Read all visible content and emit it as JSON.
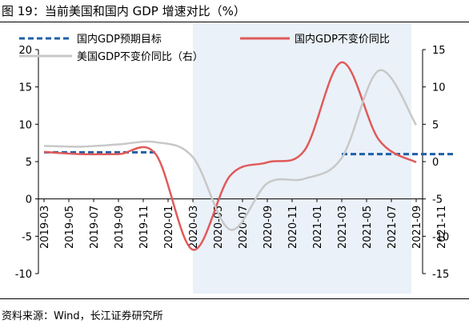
{
  "figure": {
    "title": "图 19：当前美国和国内 GDP 增速对比（%）",
    "source": "资料来源：Wind，长江证券研究所"
  },
  "chart_data": {
    "type": "line",
    "title": "",
    "xlabel": "",
    "ylabel": "",
    "y_left": {
      "ticks": [
        20,
        15,
        10,
        5,
        0,
        -5,
        -10
      ],
      "range": [
        -10,
        20
      ]
    },
    "y_right": {
      "ticks": [
        15,
        10,
        5,
        0,
        -5,
        -10,
        -15
      ],
      "range": [
        -15,
        15
      ]
    },
    "x_ticks": [
      "2019-03",
      "2019-05",
      "2019-07",
      "2019-09",
      "2019-11",
      "2020-01",
      "2020-03",
      "2020-05",
      "2020-07",
      "2020-09",
      "2020-11",
      "2021-01",
      "2021-03",
      "2021-05",
      "2021-07",
      "2021-09",
      "2021-11"
    ],
    "shaded_region": {
      "from": "2020-03",
      "to": "2021-11",
      "color": "#eaf1f8"
    },
    "grid": false,
    "legend": [
      "国内GDP预期目标",
      "国内GDP不变价同比",
      "美国GDP不变价同比（右）"
    ],
    "series": [
      {
        "name": "国内GDP预期目标",
        "axis": "left",
        "color": "#1f5fa8",
        "dash": true,
        "segments": [
          {
            "x": [
              "2019-03",
              "2019-12"
            ],
            "y": [
              6.25,
              6.25
            ]
          },
          {
            "x": [
              "2021-03",
              "2021-12"
            ],
            "y": [
              6.0,
              6.0
            ]
          }
        ]
      },
      {
        "name": "国内GDP不变价同比",
        "axis": "left",
        "color": "#e05a5a",
        "x": [
          "2019-03",
          "2019-06",
          "2019-09",
          "2019-12",
          "2020-03",
          "2020-06",
          "2020-09",
          "2020-12",
          "2021-03",
          "2021-06",
          "2021-09"
        ],
        "y": [
          6.3,
          6.0,
          6.0,
          6.0,
          -6.8,
          3.1,
          4.9,
          6.5,
          18.3,
          7.9,
          4.9
        ]
      },
      {
        "name": "美国GDP不变价同比（右）",
        "axis": "right",
        "color": "#c8c8c8",
        "x": [
          "2019-03",
          "2019-06",
          "2019-09",
          "2019-12",
          "2020-03",
          "2020-06",
          "2020-09",
          "2020-12",
          "2021-03",
          "2021-06",
          "2021-09"
        ],
        "y": [
          2.1,
          2.0,
          2.3,
          2.6,
          0.6,
          -9.1,
          -2.9,
          -2.3,
          0.5,
          12.2,
          4.9
        ]
      }
    ]
  }
}
